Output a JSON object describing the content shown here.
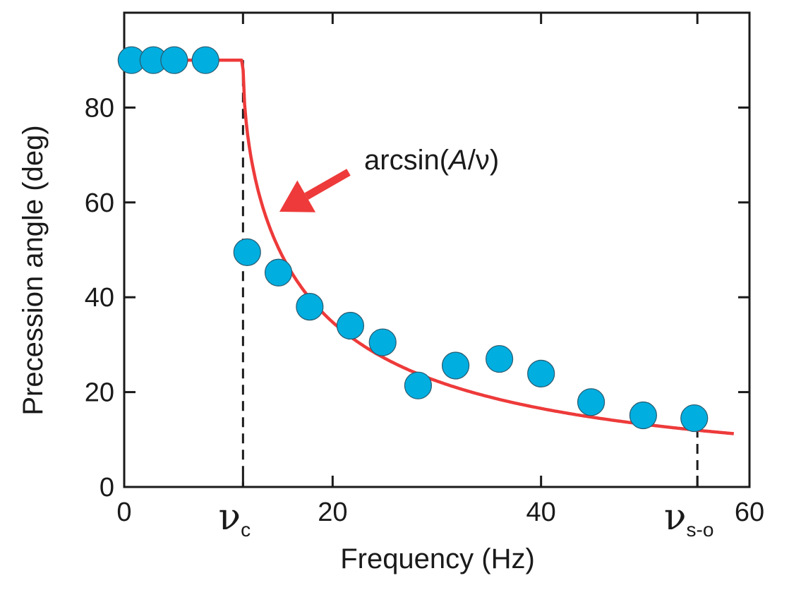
{
  "chart_data": {
    "type": "scatter",
    "xlabel": "Frequency (Hz)",
    "ylabel": "Precession angle (deg)",
    "xlim": [
      0,
      60
    ],
    "ylim": [
      0,
      100
    ],
    "x_ticks": [
      0,
      20,
      40,
      60
    ],
    "y_ticks": [
      0,
      20,
      40,
      60,
      80
    ],
    "special_x_ticks": [
      {
        "x": 11.4,
        "symbol": "ν",
        "subscript": "c"
      },
      {
        "x": 55,
        "symbol": "ν",
        "subscript": "s-o"
      }
    ],
    "grid": false,
    "points": {
      "color": "#00aee0",
      "x": [
        0.7,
        2.8,
        4.8,
        7.8,
        11.8,
        14.8,
        17.8,
        21.7,
        24.8,
        28.2,
        31.8,
        36.0,
        40.0,
        44.8,
        49.8,
        54.7
      ],
      "y": [
        90,
        90,
        90,
        90,
        49.5,
        45.2,
        38,
        34,
        30.5,
        21.4,
        25.6,
        27,
        23.9,
        17.9,
        15.1,
        14.5
      ]
    },
    "fit_curve": {
      "color": "#ee3a3a",
      "label": "arcsin(A/ν)",
      "A": 11.4,
      "x_start": 0,
      "x_end": 58.5
    },
    "annotation": {
      "text_prefix": "arcsin(",
      "text_italic": "A",
      "text_suffix": "/ν)",
      "arrow_color": "#ee3a3a"
    }
  }
}
